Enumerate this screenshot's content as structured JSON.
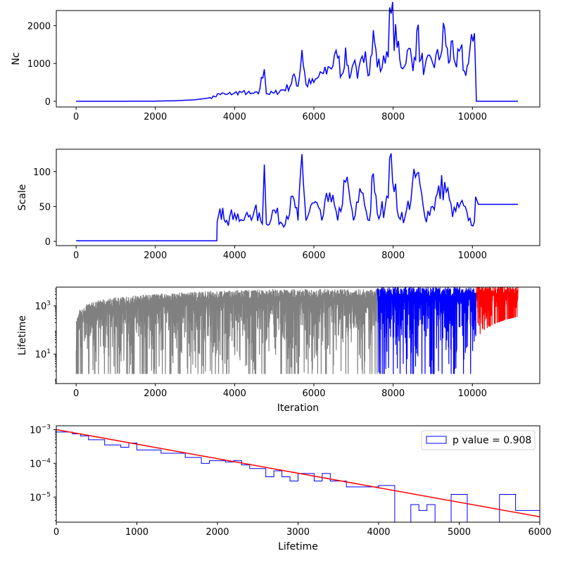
{
  "chart_data": [
    {
      "type": "line",
      "ylabel": "Nc",
      "xlabel": "",
      "xlim": [
        -500,
        11700
      ],
      "ylim": [
        -150,
        2400
      ],
      "xticks": [
        0,
        2000,
        4000,
        6000,
        8000,
        10000
      ],
      "yticks": [
        0,
        1000,
        2000
      ],
      "series": [
        {
          "color": "#0000ff",
          "points": [
            [
              0,
              0
            ],
            [
              1000,
              0
            ],
            [
              2000,
              5
            ],
            [
              2500,
              15
            ],
            [
              3000,
              40
            ],
            [
              3300,
              80
            ],
            [
              3500,
              120
            ],
            [
              3600,
              200
            ],
            [
              3800,
              180
            ],
            [
              4000,
              220
            ],
            [
              4200,
              250
            ],
            [
              4400,
              200
            ],
            [
              4600,
              200
            ],
            [
              4750,
              850
            ],
            [
              4800,
              200
            ],
            [
              5000,
              220
            ],
            [
              5200,
              300
            ],
            [
              5400,
              400
            ],
            [
              5500,
              720
            ],
            [
              5600,
              400
            ],
            [
              5700,
              1360
            ],
            [
              5800,
              450
            ],
            [
              6000,
              500
            ],
            [
              6200,
              750
            ],
            [
              6400,
              900
            ],
            [
              6600,
              1150
            ],
            [
              6700,
              700
            ],
            [
              6800,
              1420
            ],
            [
              6900,
              600
            ],
            [
              7000,
              1000
            ],
            [
              7100,
              600
            ],
            [
              7300,
              1320
            ],
            [
              7400,
              700
            ],
            [
              7500,
              1880
            ],
            [
              7600,
              900
            ],
            [
              7800,
              1000
            ],
            [
              7950,
              2320
            ],
            [
              8100,
              1420
            ],
            [
              8200,
              900
            ],
            [
              8400,
              1400
            ],
            [
              8500,
              800
            ],
            [
              8600,
              1880
            ],
            [
              8700,
              1100
            ],
            [
              8800,
              900
            ],
            [
              9000,
              1000
            ],
            [
              9200,
              1200
            ],
            [
              9300,
              1920
            ],
            [
              9400,
              1000
            ],
            [
              9500,
              1600
            ],
            [
              9600,
              900
            ],
            [
              9700,
              1400
            ],
            [
              9800,
              800
            ],
            [
              9900,
              1000
            ],
            [
              10050,
              1800
            ],
            [
              10080,
              800
            ],
            [
              10100,
              0
            ],
            [
              11150,
              0
            ]
          ]
        }
      ]
    },
    {
      "type": "line",
      "ylabel": "Scale",
      "xlabel": "",
      "xlim": [
        -500,
        11700
      ],
      "ylim": [
        -6,
        132
      ],
      "xticks": [
        0,
        2000,
        4000,
        6000,
        8000,
        10000
      ],
      "yticks": [
        0,
        50,
        100
      ],
      "series": [
        {
          "color": "#0000ff",
          "points": [
            [
              0,
              1
            ],
            [
              3550,
              1
            ],
            [
              3560,
              28
            ],
            [
              3700,
              48
            ],
            [
              3800,
              30
            ],
            [
              4000,
              40
            ],
            [
              4200,
              30
            ],
            [
              4500,
              45
            ],
            [
              4700,
              25
            ],
            [
              4750,
              110
            ],
            [
              4800,
              25
            ],
            [
              5000,
              45
            ],
            [
              5200,
              25
            ],
            [
              5500,
              60
            ],
            [
              5600,
              30
            ],
            [
              5700,
              125
            ],
            [
              5800,
              30
            ],
            [
              6000,
              55
            ],
            [
              6200,
              30
            ],
            [
              6400,
              70
            ],
            [
              6600,
              30
            ],
            [
              6800,
              85
            ],
            [
              7000,
              30
            ],
            [
              7200,
              70
            ],
            [
              7400,
              30
            ],
            [
              7500,
              97
            ],
            [
              7600,
              40
            ],
            [
              7800,
              50
            ],
            [
              7950,
              126
            ],
            [
              8100,
              45
            ],
            [
              8300,
              35
            ],
            [
              8600,
              97
            ],
            [
              8800,
              35
            ],
            [
              9000,
              50
            ],
            [
              9300,
              85
            ],
            [
              9500,
              35
            ],
            [
              9700,
              55
            ],
            [
              9900,
              30
            ],
            [
              10050,
              28
            ],
            [
              10080,
              64
            ],
            [
              10150,
              53
            ],
            [
              11150,
              53
            ]
          ]
        }
      ]
    },
    {
      "type": "line",
      "ylabel": "Lifetime",
      "xlabel": "Iteration",
      "yscale": "log",
      "xlim": [
        -500,
        11700
      ],
      "ylim": [
        0.6,
        6000
      ],
      "xticks": [
        0,
        2000,
        4000,
        6000,
        8000,
        10000
      ],
      "yticks": [
        10,
        1000
      ],
      "ytick_labels": [
        [
          "10",
          "1"
        ],
        [
          "10",
          "3"
        ]
      ],
      "series": [
        {
          "color": "#808080",
          "range": [
            0,
            7600
          ],
          "upper_envelope_end": 5000,
          "lower": 1.5
        },
        {
          "color": "#0000ff",
          "range": [
            7600,
            10100
          ],
          "upper_envelope_end": 6000,
          "lower": 1.5
        },
        {
          "color": "#ff0000",
          "range": [
            10100,
            11150
          ],
          "upper_envelope_end": 7000,
          "lower": 40
        }
      ]
    },
    {
      "type": "histogram",
      "xlabel": "Lifetime",
      "ylabel": "",
      "yscale": "log",
      "xlim": [
        0,
        6000
      ],
      "ylim": [
        1.8e-06,
        0.0013
      ],
      "xticks": [
        0,
        1000,
        2000,
        3000,
        4000,
        5000,
        6000
      ],
      "yticks": [
        1e-05,
        0.0001,
        0.001
      ],
      "ytick_labels": [
        [
          "10",
          "−5"
        ],
        [
          "10",
          "−4"
        ],
        [
          "10",
          "−3"
        ]
      ],
      "legend": {
        "location": "upper right",
        "label": "p value = 0.908"
      },
      "bin_width": 100,
      "bins_start": 100,
      "bin_values": [
        0.00085,
        0.00085,
        0.00075,
        0.00065,
        0.0005,
        0.0005,
        0.00035,
        0.00035,
        0.0003,
        0.0004,
        0.00025,
        0.00025,
        0.00025,
        0.0002,
        0.0002,
        0.0002,
        0.00015,
        0.00015,
        0.0001,
        0.00012,
        0.00012,
        0.00011,
        0.00012,
        9e-05,
        7e-05,
        7e-05,
        4e-05,
        6e-05,
        4e-05,
        3e-05,
        5e-05,
        5e-05,
        3e-05,
        5e-05,
        3e-05,
        3e-05,
        2e-05,
        2e-05,
        2e-05,
        2e-05,
        2.2e-05,
        2.2e-05,
        1.6e-06,
        1.6e-06,
        6e-06,
        4e-06,
        6e-06,
        1.6e-06,
        1.6e-06,
        1.2e-05,
        1.2e-05,
        1.6e-06,
        1.6e-06,
        1.6e-06,
        1.6e-06,
        1.2e-05,
        1.2e-05,
        4e-06,
        4e-06,
        4e-06
      ],
      "fit_line": {
        "color": "#ff0000",
        "points": [
          [
            0,
            0.001
          ],
          [
            6000,
            2.6e-06
          ]
        ]
      },
      "hist_color": "#0000ff"
    }
  ]
}
